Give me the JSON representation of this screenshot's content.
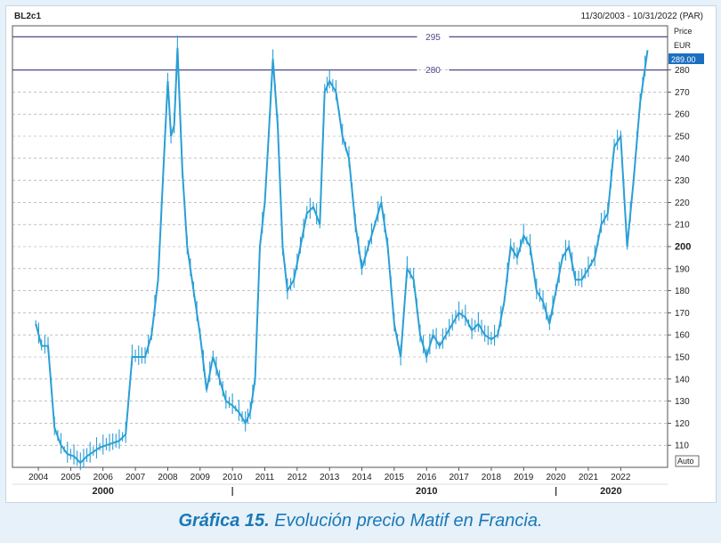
{
  "chart_data": {
    "type": "line",
    "ric": "BL2c1",
    "date_range": "11/30/2003 - 10/31/2022 (PAR)",
    "y_axis_title": [
      "Price",
      "EUR"
    ],
    "last_price_label": "289.00",
    "auto_label": "Auto",
    "ylim": [
      100,
      300
    ],
    "y_ticks": [
      110,
      120,
      130,
      140,
      150,
      160,
      170,
      180,
      190,
      200,
      210,
      220,
      230,
      240,
      250,
      260,
      270,
      280
    ],
    "y_tick_labels": [
      "110",
      "120",
      "130",
      "140",
      "150",
      "160",
      "170",
      "180",
      "190",
      "200",
      "210",
      "220",
      "230",
      "240",
      "250",
      "260",
      "270",
      "280"
    ],
    "x_ticks": [
      2004,
      2005,
      2006,
      2007,
      2008,
      2009,
      2010,
      2011,
      2012,
      2013,
      2014,
      2015,
      2016,
      2017,
      2018,
      2019,
      2020,
      2021,
      2022
    ],
    "x_tick_labels": [
      "2004",
      "2005",
      "2006",
      "2007",
      "2008",
      "2009",
      "2010",
      "2011",
      "2012",
      "2013",
      "2014",
      "2015",
      "2016",
      "2017",
      "2018",
      "2019",
      "2020",
      "2021",
      "2022"
    ],
    "decade_labels": [
      {
        "label": "2000",
        "x": 2006.0
      },
      {
        "label": "2010",
        "x": 2016.0
      },
      {
        "label": "2020",
        "x": 2021.7
      }
    ],
    "decade_markers": [
      2010.0,
      2020.0
    ],
    "reference_lines": [
      {
        "value": 295,
        "label": "295"
      },
      {
        "value": 280,
        "label": "280"
      }
    ],
    "grid": true,
    "colors": {
      "series": "#2a9fd6",
      "reference": "#4a4a8a",
      "grid": "#9a9a9a",
      "price_tag": "#1a6fc0"
    },
    "series": [
      {
        "x": [
          2003.92,
          2004.1,
          2004.3,
          2004.5,
          2004.7,
          2004.9,
          2005.1,
          2005.3,
          2005.5,
          2005.7,
          2005.9,
          2006.1,
          2006.3,
          2006.5,
          2006.7,
          2006.9,
          2007.1,
          2007.3,
          2007.5,
          2007.7,
          2007.9,
          2008.0,
          2008.1,
          2008.2,
          2008.3,
          2008.45,
          2008.6,
          2008.8,
          2009.0,
          2009.2,
          2009.4,
          2009.6,
          2009.8,
          2010.0,
          2010.2,
          2010.4,
          2010.55,
          2010.7,
          2010.85,
          2011.0,
          2011.1,
          2011.25,
          2011.4,
          2011.55,
          2011.7,
          2011.9,
          2012.1,
          2012.3,
          2012.5,
          2012.7,
          2012.85,
          2013.0,
          2013.2,
          2013.4,
          2013.6,
          2013.8,
          2014.0,
          2014.2,
          2014.4,
          2014.6,
          2014.8,
          2015.0,
          2015.2,
          2015.4,
          2015.6,
          2015.8,
          2016.0,
          2016.2,
          2016.4,
          2016.6,
          2016.8,
          2017.0,
          2017.2,
          2017.4,
          2017.6,
          2017.8,
          2018.0,
          2018.2,
          2018.4,
          2018.6,
          2018.8,
          2019.0,
          2019.2,
          2019.4,
          2019.6,
          2019.8,
          2020.0,
          2020.2,
          2020.4,
          2020.6,
          2020.8,
          2021.0,
          2021.2,
          2021.4,
          2021.6,
          2021.8,
          2022.0,
          2022.2,
          2022.4,
          2022.6,
          2022.83
        ],
        "y": [
          165,
          155,
          155,
          118,
          110,
          106,
          105,
          102,
          105,
          107,
          109,
          110,
          111,
          112,
          115,
          150,
          150,
          150,
          160,
          185,
          245,
          275,
          250,
          255,
          290,
          235,
          200,
          180,
          160,
          135,
          150,
          140,
          130,
          128,
          125,
          120,
          125,
          140,
          200,
          220,
          245,
          285,
          255,
          200,
          180,
          185,
          200,
          215,
          218,
          210,
          270,
          275,
          270,
          250,
          240,
          210,
          190,
          200,
          210,
          220,
          200,
          165,
          150,
          190,
          185,
          160,
          150,
          160,
          155,
          160,
          165,
          170,
          168,
          162,
          165,
          160,
          158,
          160,
          175,
          200,
          195,
          205,
          200,
          180,
          175,
          165,
          180,
          195,
          200,
          185,
          185,
          190,
          195,
          210,
          215,
          245,
          250,
          200,
          230,
          265,
          289
        ]
      }
    ]
  },
  "caption": {
    "label": "Gráfica 15.",
    "text": " Evolución precio Matif en Francia."
  }
}
